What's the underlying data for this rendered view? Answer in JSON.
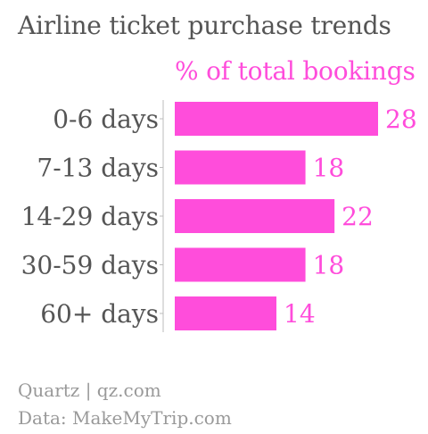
{
  "colors": {
    "accent": "#ff4ddb",
    "text": "#555555",
    "muted": "#999999",
    "axis": "#bbbbbb"
  },
  "chart_data": {
    "type": "bar",
    "orientation": "horizontal",
    "title": "Airline ticket purchase trends",
    "categories": [
      "0-6 days",
      "7-13 days",
      "14-29 days",
      "30-59 days",
      "60+ days"
    ],
    "series": [
      {
        "name": "% of total bookings",
        "values": [
          28,
          18,
          22,
          18,
          14
        ]
      }
    ],
    "xlim": [
      0,
      28
    ],
    "grid": false,
    "data_labels": true
  },
  "footer": {
    "source": "Quartz | qz.com",
    "data_source": "Data: MakeMyTrip.com"
  }
}
